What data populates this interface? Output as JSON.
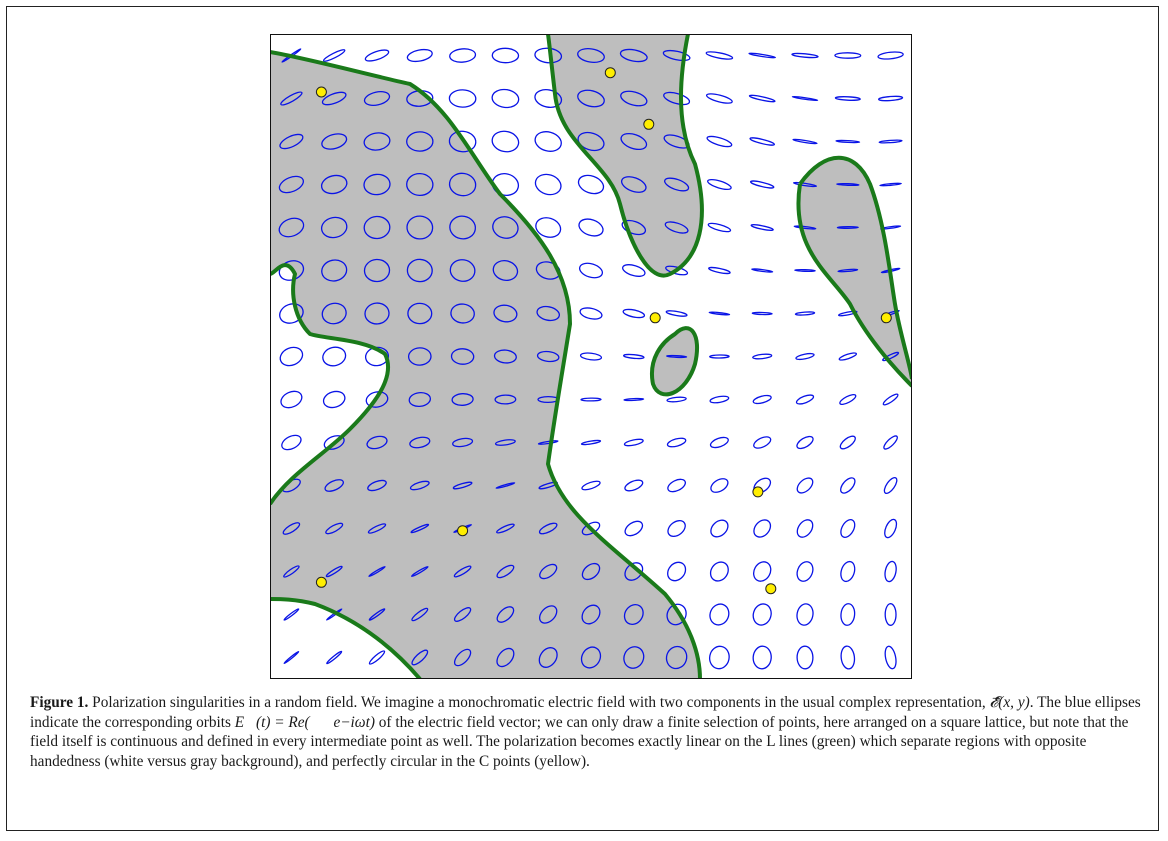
{
  "figure": {
    "label": "Figure 1.",
    "caption": {
      "s1": " Polarization singularities in a random field. We imagine a monochromatic electric field with two components in the usual complex representation, ",
      "field_symbol": "𝓔⃗(x, y)",
      "s2": ". The blue ellipses indicate the corresponding orbits ",
      "orbit_formula": "E⃗(t) = Re(𝓔⃗e−iωt)",
      "s3": " of the electric field vector; we can only draw a finite selection of points, here arranged on a square lattice, but note that the field itself is continuous and defined in every intermediate point as well. The polarization becomes exactly linear on the L lines (green) which separate regions with opposite handedness (white versus gray background), and perfectly circular in the C points (yellow)."
    }
  },
  "colors": {
    "ellipse": "#0a14e6",
    "l_line": "#1a7a1a",
    "gray_region": "#bebebe",
    "c_point_fill": "#ffee00",
    "c_point_stroke": "#222222"
  },
  "c_points": [
    [
      0.08,
      0.09
    ],
    [
      0.53,
      0.06
    ],
    [
      0.59,
      0.14
    ],
    [
      0.6,
      0.44
    ],
    [
      0.96,
      0.44
    ],
    [
      0.76,
      0.71
    ],
    [
      0.3,
      0.77
    ],
    [
      0.08,
      0.85
    ],
    [
      0.78,
      0.86
    ]
  ]
}
